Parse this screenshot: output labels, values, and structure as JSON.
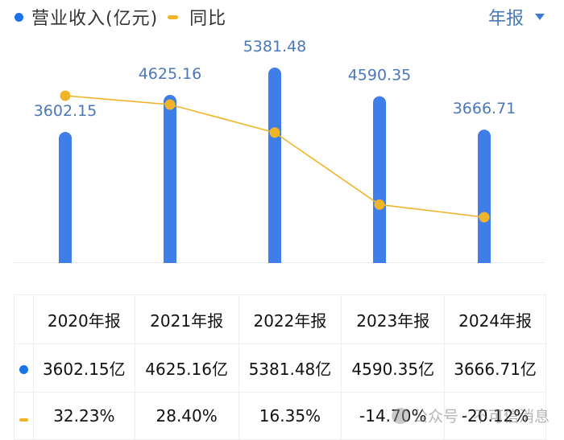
{
  "legend": {
    "revenue_label": "营业收入(亿元)",
    "yoy_label": "同比",
    "revenue_color": "#1a73e8",
    "yoy_color": "#f0b429"
  },
  "period_selector": {
    "label": "年报",
    "icon": "caret-down-icon"
  },
  "chart_data": {
    "type": "bar",
    "title": "",
    "categories": [
      "2020年报",
      "2021年报",
      "2022年报",
      "2023年报",
      "2024年报"
    ],
    "series": [
      {
        "name": "营业收入(亿元)",
        "type": "bar",
        "color": "#3f7ee8",
        "values": [
          3602.15,
          4625.16,
          5381.48,
          4590.35,
          3666.71
        ],
        "labels": [
          "3602.15",
          "4625.16",
          "5381.48",
          "4590.35",
          "3666.71"
        ]
      },
      {
        "name": "同比",
        "type": "line",
        "color": "#f0b429",
        "unit": "%",
        "values": [
          32.23,
          28.4,
          16.35,
          -14.7,
          -20.12
        ]
      }
    ],
    "xlabel": "",
    "ylabel": "",
    "grid": false,
    "legend_position": "top-left"
  },
  "table": {
    "headers": [
      "2020年报",
      "2021年报",
      "2022年报",
      "2023年报",
      "2024年报"
    ],
    "revenue_row": [
      "3602.15亿",
      "4625.16亿",
      "5381.48亿",
      "4590.35亿",
      "3666.71亿"
    ],
    "yoy_row": [
      "32.23%",
      "28.40%",
      "16.35%",
      "-14.70%",
      "-20.12%"
    ],
    "positive_color": "#d0505a",
    "negative_color": "#2e9a6a"
  },
  "watermark": {
    "text": "公众号 · 不可信消息"
  }
}
